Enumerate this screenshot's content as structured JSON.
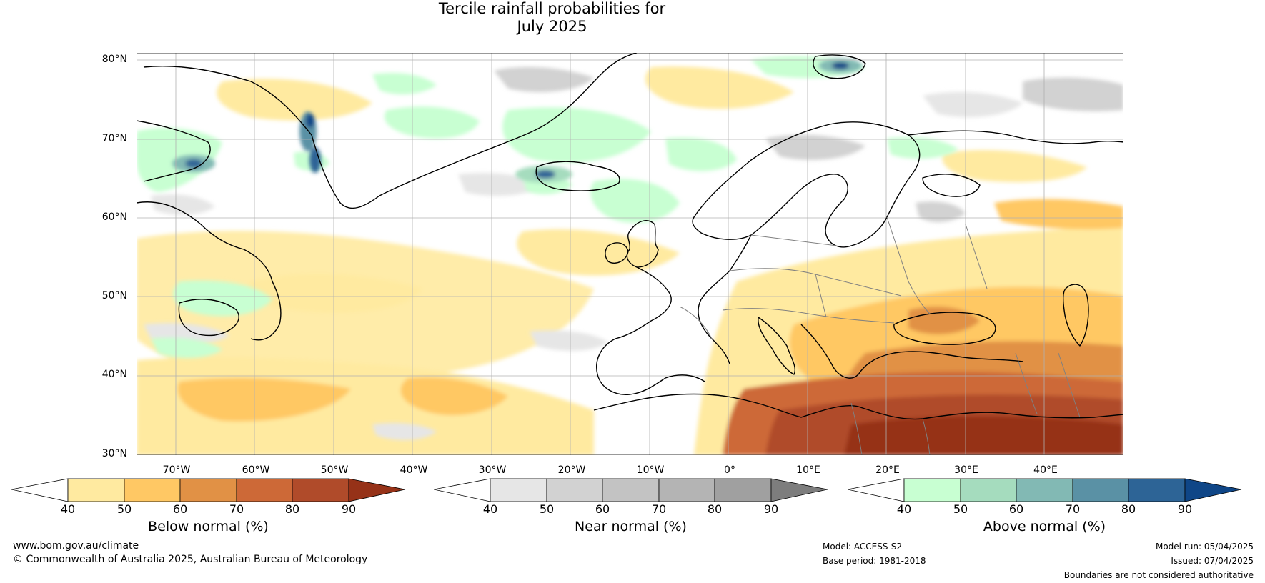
{
  "title": {
    "line1": "Tercile rainfall probabilities for",
    "line2": "July 2025"
  },
  "map": {
    "lat_labels": [
      "80°N",
      "70°N",
      "60°N",
      "50°N",
      "40°N",
      "30°N"
    ],
    "lon_labels": [
      "70°W",
      "60°W",
      "50°W",
      "40°W",
      "30°W",
      "20°W",
      "10°W",
      "0°",
      "10°E",
      "20°E",
      "30°E",
      "40°E"
    ],
    "extent": {
      "lon_min": -75,
      "lon_max": 50,
      "lat_min": 30,
      "lat_max": 81
    },
    "colors": {
      "ocean": "#ffffff",
      "coast": "#000000",
      "borders": "#808080",
      "grid": "#b0b0b0"
    }
  },
  "colorbars": [
    {
      "label": "Below normal (%)",
      "ticks": [
        "40",
        "50",
        "60",
        "70",
        "80",
        "90"
      ],
      "colors": [
        "#ffffff",
        "#ffeaa0",
        "#ffc864",
        "#e19145",
        "#cd6937",
        "#b04b2a",
        "#963218"
      ]
    },
    {
      "label": "Near normal (%)",
      "ticks": [
        "40",
        "50",
        "60",
        "70",
        "80",
        "90"
      ],
      "colors": [
        "#ffffff",
        "#e6e6e6",
        "#d2d2d2",
        "#c3c3c3",
        "#b4b4b4",
        "#a0a0a0",
        "#7d7d7d"
      ]
    },
    {
      "label": "Above normal (%)",
      "ticks": [
        "40",
        "50",
        "60",
        "70",
        "80",
        "90"
      ],
      "colors": [
        "#ffffff",
        "#c8ffd2",
        "#a5dcbe",
        "#82b9b4",
        "#5a91a5",
        "#2d6496",
        "#0f4687"
      ]
    }
  ],
  "footer": {
    "website": "www.bom.gov.au/climate",
    "copyright": "© Commonwealth of Australia 2025, Australian Bureau of Meteorology",
    "model": "Model: ACCESS-S2",
    "base_period": "Base period: 1981-2018",
    "model_run": "Model run: 05/04/2025",
    "issued": "Issued: 07/04/2025",
    "disclaimer": "Boundaries are not considered authoritative"
  }
}
